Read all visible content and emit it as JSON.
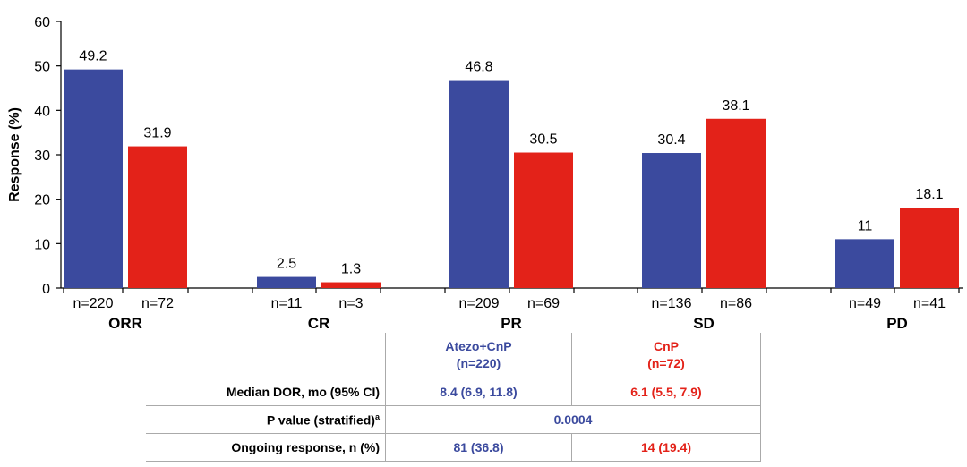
{
  "chart_data": {
    "type": "bar",
    "ylabel": "Response (%)",
    "ylim": [
      0,
      60
    ],
    "yticks": [
      "0",
      "10",
      "20",
      "30",
      "40",
      "50",
      "60"
    ],
    "categories": [
      "ORR",
      "CR",
      "PR",
      "SD",
      "PD"
    ],
    "series": [
      {
        "color": "#3b4a9e",
        "values": [
          49.2,
          2.5,
          46.8,
          30.4,
          11
        ],
        "value_labels": [
          "49.2",
          "2.5",
          "46.8",
          "30.4",
          "11"
        ],
        "n_labels": [
          "n=220",
          "n=11",
          "n=209",
          "n=136",
          "n=49"
        ]
      },
      {
        "color": "#e32219",
        "values": [
          31.9,
          1.3,
          30.5,
          38.1,
          18.1
        ],
        "value_labels": [
          "31.9",
          "1.3",
          "30.5",
          "38.1",
          "18.1"
        ],
        "n_labels": [
          "n=72",
          "n=3",
          "n=69",
          "n=86",
          "n=41"
        ]
      }
    ],
    "grid": false,
    "legend": "none"
  },
  "table": {
    "columns": [
      {
        "name": "Atezo+CnP",
        "n": "(n=220)"
      },
      {
        "name": "CnP",
        "n": "(n=72)"
      }
    ],
    "rows": {
      "dor": {
        "label": "Median DOR, mo (95% CI)",
        "atezo": "8.4 (6.9, 11.8)",
        "cnp": "6.1 (5.5, 7.9)"
      },
      "pvalue": {
        "label": "P value (stratified)",
        "sup": "a",
        "value": "0.0004"
      },
      "ongoing": {
        "label": "Ongoing response, n (%)",
        "atezo": "81 (36.8)",
        "cnp": "14 (19.4)"
      }
    }
  }
}
